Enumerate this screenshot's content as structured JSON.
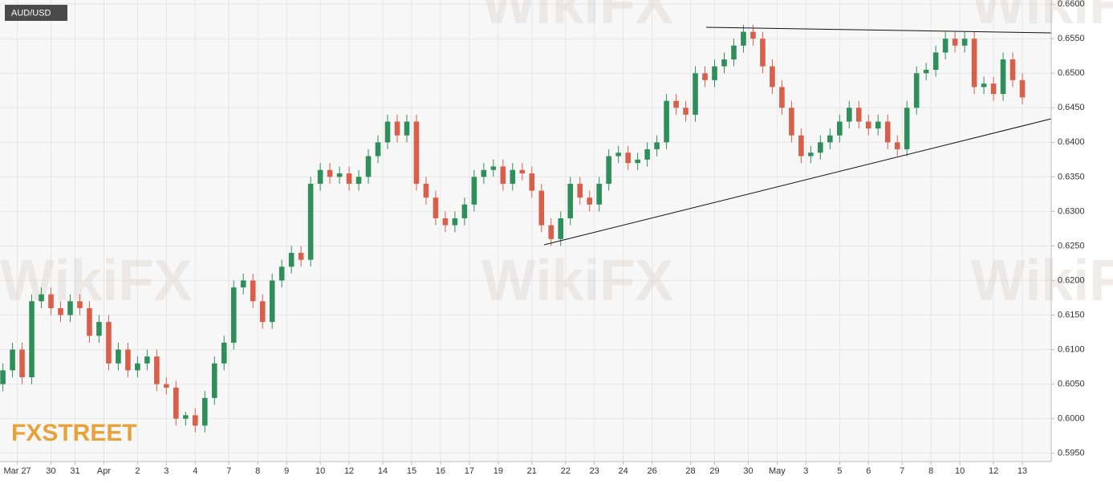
{
  "chart_data": {
    "type": "candlestick",
    "title": "AUD/USD",
    "logo": "FXSTREET",
    "watermark": "WikiFX",
    "up_color": "#2f8f5b",
    "down_color": "#d8604a",
    "grid": true,
    "ylim": [
      0.5938,
      0.6606
    ],
    "yticks": [
      {
        "value": 0.595,
        "label": "0.5950"
      },
      {
        "value": 0.6,
        "label": "0.6000"
      },
      {
        "value": 0.605,
        "label": "0.6050"
      },
      {
        "value": 0.61,
        "label": "0.6100"
      },
      {
        "value": 0.615,
        "label": "0.6150"
      },
      {
        "value": 0.62,
        "label": "0.6200"
      },
      {
        "value": 0.625,
        "label": "0.6250"
      },
      {
        "value": 0.63,
        "label": "0.6300"
      },
      {
        "value": 0.635,
        "label": "0.6350"
      },
      {
        "value": 0.64,
        "label": "0.6400"
      },
      {
        "value": 0.645,
        "label": "0.6450"
      },
      {
        "value": 0.65,
        "label": "0.6500"
      },
      {
        "value": 0.655,
        "label": "0.6550"
      },
      {
        "value": 0.66,
        "label": "0.6600"
      }
    ],
    "xlim": [
      -0.3,
      109
    ],
    "xticks": [
      {
        "value": 1.5,
        "label": "Mar 27"
      },
      {
        "value": 5,
        "label": "30"
      },
      {
        "value": 7.5,
        "label": "31"
      },
      {
        "value": 10.5,
        "label": "Apr"
      },
      {
        "value": 14,
        "label": "2"
      },
      {
        "value": 17,
        "label": "3"
      },
      {
        "value": 20,
        "label": "4"
      },
      {
        "value": 23.5,
        "label": "7"
      },
      {
        "value": 26.5,
        "label": "8"
      },
      {
        "value": 29.5,
        "label": "9"
      },
      {
        "value": 33,
        "label": "10"
      },
      {
        "value": 36,
        "label": "12"
      },
      {
        "value": 39.5,
        "label": "14"
      },
      {
        "value": 42.5,
        "label": "15"
      },
      {
        "value": 45.5,
        "label": "16"
      },
      {
        "value": 48.5,
        "label": "17"
      },
      {
        "value": 51.5,
        "label": "19"
      },
      {
        "value": 55,
        "label": "21"
      },
      {
        "value": 58.5,
        "label": "22"
      },
      {
        "value": 61.5,
        "label": "23"
      },
      {
        "value": 64.5,
        "label": "24"
      },
      {
        "value": 67.5,
        "label": "26"
      },
      {
        "value": 71.5,
        "label": "28"
      },
      {
        "value": 74,
        "label": "29"
      },
      {
        "value": 77.5,
        "label": "30"
      },
      {
        "value": 80.5,
        "label": "May"
      },
      {
        "value": 83.5,
        "label": "3"
      },
      {
        "value": 87,
        "label": "5"
      },
      {
        "value": 90,
        "label": "6"
      },
      {
        "value": 93.5,
        "label": "7"
      },
      {
        "value": 96.5,
        "label": "8"
      },
      {
        "value": 99.5,
        "label": "10"
      },
      {
        "value": 103,
        "label": "12"
      },
      {
        "value": 106,
        "label": "13"
      }
    ],
    "open": [
      0.605,
      0.607,
      0.61,
      0.606,
      0.617,
      0.618,
      0.616,
      0.615,
      0.617,
      0.616,
      0.612,
      0.614,
      0.608,
      0.61,
      0.607,
      0.608,
      0.609,
      0.605,
      0.6045,
      0.6,
      0.6005,
      0.599,
      0.603,
      0.608,
      0.611,
      0.619,
      0.62,
      0.617,
      0.614,
      0.62,
      0.622,
      0.624,
      0.623,
      0.634,
      0.636,
      0.635,
      0.6355,
      0.634,
      0.635,
      0.638,
      0.64,
      0.643,
      0.641,
      0.643,
      0.634,
      0.632,
      0.629,
      0.628,
      0.629,
      0.631,
      0.635,
      0.636,
      0.6365,
      0.634,
      0.636,
      0.6355,
      0.633,
      0.628,
      0.626,
      0.629,
      0.634,
      0.632,
      0.631,
      0.634,
      0.638,
      0.6385,
      0.637,
      0.6375,
      0.639,
      0.64,
      0.646,
      0.645,
      0.644,
      0.65,
      0.649,
      0.651,
      0.652,
      0.654,
      0.656,
      0.655,
      0.651,
      0.648,
      0.645,
      0.641,
      0.638,
      0.6385,
      0.64,
      0.641,
      0.643,
      0.645,
      0.643,
      0.642,
      0.643,
      0.64,
      0.639,
      0.645,
      0.65,
      0.6505,
      0.653,
      0.655,
      0.654,
      0.655,
      0.648,
      0.6485,
      0.647,
      0.652,
      0.649
    ],
    "high": [
      0.608,
      0.611,
      0.611,
      0.618,
      0.619,
      0.619,
      0.617,
      0.618,
      0.618,
      0.617,
      0.615,
      0.615,
      0.611,
      0.611,
      0.609,
      0.61,
      0.61,
      0.606,
      0.6055,
      0.601,
      0.6015,
      0.604,
      0.609,
      0.612,
      0.62,
      0.621,
      0.621,
      0.618,
      0.621,
      0.623,
      0.625,
      0.625,
      0.635,
      0.637,
      0.637,
      0.6365,
      0.6365,
      0.636,
      0.639,
      0.641,
      0.644,
      0.644,
      0.644,
      0.644,
      0.635,
      0.633,
      0.63,
      0.63,
      0.632,
      0.636,
      0.637,
      0.6375,
      0.6375,
      0.637,
      0.637,
      0.6365,
      0.634,
      0.629,
      0.63,
      0.635,
      0.635,
      0.633,
      0.635,
      0.639,
      0.6395,
      0.6395,
      0.6385,
      0.64,
      0.641,
      0.647,
      0.647,
      0.646,
      0.651,
      0.651,
      0.652,
      0.653,
      0.655,
      0.657,
      0.657,
      0.656,
      0.652,
      0.649,
      0.646,
      0.642,
      0.6395,
      0.641,
      0.642,
      0.644,
      0.646,
      0.646,
      0.644,
      0.644,
      0.644,
      0.641,
      0.646,
      0.651,
      0.6515,
      0.654,
      0.656,
      0.656,
      0.656,
      0.656,
      0.6495,
      0.6495,
      0.653,
      0.653,
      0.65
    ],
    "low": [
      0.604,
      0.606,
      0.605,
      0.605,
      0.616,
      0.615,
      0.614,
      0.614,
      0.615,
      0.611,
      0.611,
      0.607,
      0.607,
      0.606,
      0.606,
      0.607,
      0.604,
      0.6035,
      0.599,
      0.599,
      0.598,
      0.598,
      0.602,
      0.607,
      0.61,
      0.618,
      0.616,
      0.613,
      0.613,
      0.619,
      0.621,
      0.622,
      0.622,
      0.633,
      0.634,
      0.634,
      0.633,
      0.633,
      0.634,
      0.637,
      0.639,
      0.64,
      0.64,
      0.633,
      0.631,
      0.628,
      0.627,
      0.627,
      0.628,
      0.63,
      0.634,
      0.635,
      0.633,
      0.633,
      0.6345,
      0.632,
      0.627,
      0.625,
      0.625,
      0.628,
      0.631,
      0.63,
      0.63,
      0.633,
      0.637,
      0.636,
      0.636,
      0.6365,
      0.638,
      0.639,
      0.644,
      0.643,
      0.643,
      0.648,
      0.648,
      0.65,
      0.651,
      0.653,
      0.654,
      0.65,
      0.647,
      0.644,
      0.64,
      0.637,
      0.637,
      0.6375,
      0.639,
      0.64,
      0.642,
      0.642,
      0.641,
      0.641,
      0.639,
      0.638,
      0.638,
      0.644,
      0.649,
      0.6495,
      0.652,
      0.653,
      0.653,
      0.647,
      0.647,
      0.646,
      0.646,
      0.648,
      0.6455
    ],
    "close": [
      0.607,
      0.61,
      0.606,
      0.617,
      0.618,
      0.616,
      0.615,
      0.617,
      0.616,
      0.612,
      0.614,
      0.608,
      0.61,
      0.607,
      0.608,
      0.609,
      0.605,
      0.6045,
      0.6,
      0.6005,
      0.599,
      0.603,
      0.608,
      0.611,
      0.619,
      0.62,
      0.617,
      0.614,
      0.62,
      0.622,
      0.624,
      0.623,
      0.634,
      0.636,
      0.635,
      0.6355,
      0.634,
      0.635,
      0.638,
      0.64,
      0.643,
      0.641,
      0.643,
      0.634,
      0.632,
      0.629,
      0.628,
      0.629,
      0.631,
      0.635,
      0.636,
      0.6365,
      0.634,
      0.636,
      0.6355,
      0.633,
      0.628,
      0.626,
      0.629,
      0.634,
      0.632,
      0.631,
      0.634,
      0.638,
      0.6385,
      0.637,
      0.6375,
      0.639,
      0.64,
      0.646,
      0.645,
      0.644,
      0.65,
      0.649,
      0.651,
      0.652,
      0.654,
      0.656,
      0.655,
      0.651,
      0.648,
      0.645,
      0.641,
      0.638,
      0.6385,
      0.64,
      0.641,
      0.643,
      0.645,
      0.643,
      0.642,
      0.643,
      0.64,
      0.639,
      0.645,
      0.65,
      0.6505,
      0.653,
      0.655,
      0.654,
      0.655,
      0.648,
      0.6485,
      0.647,
      0.652,
      0.649,
      0.6465
    ]
  }
}
